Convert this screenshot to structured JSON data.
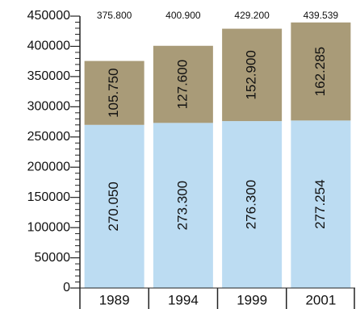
{
  "chart_data": {
    "type": "stacked_bar",
    "categories": [
      "1989",
      "1994",
      "1999",
      "2001"
    ],
    "series": [
      {
        "color": "#bcdcf2",
        "values": [
          270050,
          273300,
          276300,
          277254
        ],
        "value_labels": [
          "270.050",
          "273.300",
          "276.300",
          "277.254"
        ]
      },
      {
        "color": "#a99b78",
        "values": [
          105750,
          127600,
          152900,
          162285
        ],
        "value_labels": [
          "105.750",
          "127.600",
          "152.900",
          "162.285"
        ]
      }
    ],
    "totals": {
      "values": [
        375800,
        400900,
        429200,
        439539
      ],
      "value_labels": [
        "375.800",
        "400.900",
        "429.200",
        "439.539"
      ]
    },
    "ylim": [
      0,
      450000
    ],
    "yticks": [
      0,
      50000,
      100000,
      150000,
      200000,
      250000,
      300000,
      350000,
      400000,
      450000
    ]
  }
}
